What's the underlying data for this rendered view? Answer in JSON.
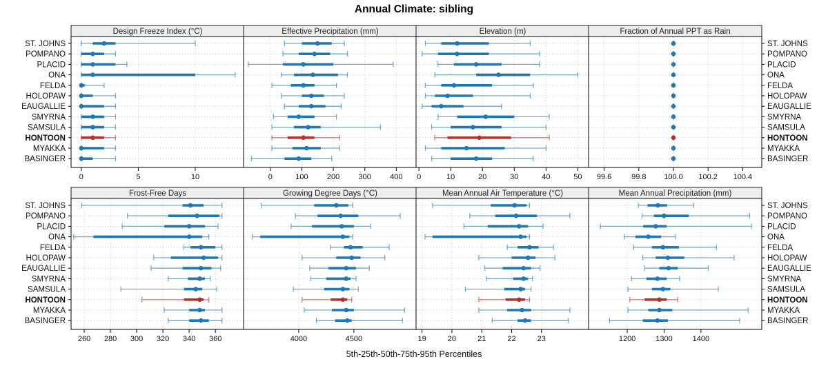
{
  "title": "Annual Climate: sibling",
  "caption": "5th-25th-50th-75th-95th Percentiles",
  "stations": [
    "ST. JOHNS",
    "POMPANO",
    "PLACID",
    "ONA",
    "FELDA",
    "HOLOPAW",
    "EAUGALLIE",
    "SMYRNA",
    "SAMSULA",
    "HONTOON",
    "MYAKKA",
    "BASINGER"
  ],
  "highlight_station": "HONTOON",
  "percentiles": [
    5,
    25,
    50,
    75,
    95
  ],
  "colors": {
    "series": "#1f77b4",
    "highlight": "#b5312c",
    "grid": "#c4c4c4",
    "strip_bg": "#ededed",
    "border": "#000000",
    "text": "#111111"
  },
  "chart_data": [
    {
      "type": "dotplot-interval",
      "id": "design-freeze-index",
      "row": 0,
      "col": 0,
      "title": "Design Freeze Index (°C)",
      "xlim": [
        -0.9,
        14.3
      ],
      "ticks": [
        0,
        5,
        10
      ],
      "values": [
        [
          0,
          1,
          2,
          3,
          10
        ],
        [
          0,
          0,
          1,
          2,
          3
        ],
        [
          0,
          0,
          1,
          3,
          4
        ],
        [
          0,
          0,
          1,
          10,
          13.5
        ],
        [
          0,
          0,
          0,
          0.3,
          2
        ],
        [
          0,
          0,
          0,
          1,
          3
        ],
        [
          0,
          0,
          0,
          2,
          3
        ],
        [
          0,
          0,
          1,
          2,
          3
        ],
        [
          0,
          0,
          1,
          2,
          3
        ],
        [
          0,
          0,
          1,
          2,
          3
        ],
        [
          0,
          0,
          0,
          2,
          3
        ],
        [
          0,
          0,
          0,
          1,
          3
        ]
      ]
    },
    {
      "type": "dotplot-interval",
      "id": "effective-precipitation",
      "row": 0,
      "col": 1,
      "title": "Effective Precipitation (mm)",
      "xlim": [
        -85,
        465
      ],
      "ticks": [
        0,
        100,
        200,
        300,
        400
      ],
      "values": [
        [
          45,
          100,
          150,
          195,
          235
        ],
        [
          40,
          90,
          140,
          190,
          245
        ],
        [
          -70,
          40,
          105,
          200,
          390
        ],
        [
          35,
          75,
          135,
          215,
          245
        ],
        [
          5,
          65,
          105,
          140,
          210
        ],
        [
          35,
          100,
          130,
          170,
          235
        ],
        [
          45,
          90,
          130,
          175,
          225
        ],
        [
          10,
          55,
          90,
          140,
          210
        ],
        [
          5,
          75,
          120,
          160,
          350
        ],
        [
          5,
          55,
          105,
          140,
          220
        ],
        [
          5,
          70,
          115,
          160,
          220
        ],
        [
          -60,
          45,
          90,
          130,
          195
        ]
      ]
    },
    {
      "type": "dotplot-interval",
      "id": "elevation",
      "row": 0,
      "col": 2,
      "title": "Elevation (m)",
      "xlim": [
        -0.9,
        53.6
      ],
      "ticks": [
        0,
        10,
        20,
        30,
        40,
        50
      ],
      "values": [
        [
          2,
          7,
          12,
          22,
          35
        ],
        [
          1,
          6,
          12,
          22,
          38
        ],
        [
          6,
          11,
          18,
          26,
          38
        ],
        [
          5,
          18,
          25,
          35,
          50
        ],
        [
          2,
          7,
          11,
          23,
          36
        ],
        [
          2,
          5,
          9,
          17,
          35
        ],
        [
          1,
          4,
          7,
          14,
          26
        ],
        [
          6,
          12,
          21,
          30,
          41
        ],
        [
          4,
          10,
          17,
          26,
          40
        ],
        [
          5,
          9,
          19,
          29,
          41
        ],
        [
          2,
          7,
          15,
          27,
          40
        ],
        [
          4,
          10,
          18,
          23,
          36
        ]
      ]
    },
    {
      "type": "dotplot-interval",
      "id": "fraction-annual-ppt-as-rain",
      "row": 0,
      "col": 3,
      "title": "Fraction of Annual PPT as Rain",
      "xlim": [
        99.51,
        100.51
      ],
      "ticks": [
        99.6,
        99.8,
        100.0,
        100.2,
        100.4
      ],
      "tick_labels": [
        "99.6",
        "99.8",
        "100.0",
        "100.2",
        "100.4"
      ],
      "values": [
        [
          100,
          100,
          100,
          100,
          100
        ],
        [
          100,
          100,
          100,
          100,
          100
        ],
        [
          100,
          100,
          100,
          100,
          100
        ],
        [
          100,
          100,
          100,
          100,
          100
        ],
        [
          100,
          100,
          100,
          100,
          100
        ],
        [
          100,
          100,
          100,
          100,
          100
        ],
        [
          100,
          100,
          100,
          100,
          100
        ],
        [
          100,
          100,
          100,
          100,
          100
        ],
        [
          100,
          100,
          100,
          100,
          100
        ],
        [
          100,
          100,
          100,
          100,
          100
        ],
        [
          100,
          100,
          100,
          100,
          100
        ],
        [
          100,
          100,
          100,
          100,
          100
        ]
      ]
    },
    {
      "type": "dotplot-interval",
      "id": "frost-free-days",
      "row": 1,
      "col": 0,
      "title": "Frost-Free Days",
      "xlim": [
        250,
        382
      ],
      "ticks": [
        260,
        280,
        300,
        320,
        340,
        360
      ],
      "values": [
        [
          258,
          335,
          341,
          351,
          365
        ],
        [
          293,
          324,
          346,
          363,
          365
        ],
        [
          289,
          321,
          340,
          352,
          362
        ],
        [
          252,
          267,
          340,
          350,
          355
        ],
        [
          336,
          341,
          349,
          360,
          365
        ],
        [
          313,
          326,
          351,
          362,
          365
        ],
        [
          311,
          335,
          349,
          357,
          364
        ],
        [
          324,
          339,
          348,
          352,
          356
        ],
        [
          288,
          336,
          345,
          350,
          361
        ],
        [
          304,
          336,
          348,
          351,
          355
        ],
        [
          321,
          340,
          348,
          352,
          365
        ],
        [
          324,
          340,
          349,
          355,
          365
        ]
      ]
    },
    {
      "type": "dotplot-interval",
      "id": "growing-degree-days",
      "row": 1,
      "col": 1,
      "title": "Growing Degree Days (°C)",
      "xlim": [
        3500,
        5070
      ],
      "ticks": [
        4000,
        4500
      ],
      "values": [
        [
          3660,
          4140,
          4340,
          4450,
          4490
        ],
        [
          3970,
          4170,
          4380,
          4540,
          4920
        ],
        [
          3930,
          4120,
          4390,
          4500,
          4650
        ],
        [
          3580,
          3650,
          4400,
          4460,
          4490
        ],
        [
          4290,
          4410,
          4470,
          4580,
          4820
        ],
        [
          4030,
          4340,
          4480,
          4560,
          4780
        ],
        [
          4100,
          4270,
          4430,
          4520,
          4640
        ],
        [
          4110,
          4250,
          4430,
          4470,
          4520
        ],
        [
          3950,
          4230,
          4400,
          4460,
          4540
        ],
        [
          4030,
          4290,
          4400,
          4440,
          4480
        ],
        [
          4050,
          4300,
          4430,
          4500,
          4960
        ],
        [
          4160,
          4330,
          4440,
          4480,
          4940
        ]
      ]
    },
    {
      "type": "dotplot-interval",
      "id": "mean-annual-air-temperature",
      "row": 1,
      "col": 2,
      "title": "Mean Annual Air Temperature (°C)",
      "xlim": [
        18.8,
        24.6
      ],
      "ticks": [
        19,
        20,
        21,
        22,
        23
      ],
      "values": [
        [
          19.35,
          21.3,
          22.1,
          22.5,
          22.6
        ],
        [
          20.6,
          21.45,
          22.15,
          22.85,
          23.95
        ],
        [
          20.4,
          21.2,
          22.25,
          22.55,
          23.05
        ],
        [
          19.1,
          19.35,
          22.3,
          22.5,
          22.6
        ],
        [
          21.85,
          22.2,
          22.6,
          22.9,
          23.4
        ],
        [
          20.9,
          22.0,
          22.55,
          22.8,
          23.45
        ],
        [
          21.1,
          21.7,
          22.4,
          22.65,
          22.95
        ],
        [
          21.15,
          22.05,
          22.4,
          22.55,
          22.7
        ],
        [
          20.45,
          21.75,
          22.3,
          22.45,
          22.65
        ],
        [
          20.9,
          21.8,
          22.25,
          22.45,
          22.6
        ],
        [
          20.9,
          21.85,
          22.35,
          22.65,
          23.95
        ],
        [
          21.35,
          22.2,
          22.45,
          22.65,
          23.9
        ]
      ]
    },
    {
      "type": "dotplot-interval",
      "id": "mean-annual-precipitation",
      "row": 1,
      "col": 3,
      "title": "Mean Annual Precipitation (mm)",
      "xlim": [
        1095,
        1565
      ],
      "ticks": [
        1200,
        1300,
        1400
      ],
      "values": [
        [
          1230,
          1255,
          1283,
          1308,
          1380
        ],
        [
          1240,
          1272,
          1300,
          1367,
          1532
        ],
        [
          1127,
          1243,
          1277,
          1307,
          1537
        ],
        [
          1192,
          1222,
          1257,
          1292,
          1330
        ],
        [
          1217,
          1267,
          1297,
          1340,
          1442
        ],
        [
          1242,
          1277,
          1310,
          1355,
          1490
        ],
        [
          1247,
          1287,
          1312,
          1337,
          1420
        ],
        [
          1212,
          1252,
          1282,
          1307,
          1342
        ],
        [
          1202,
          1267,
          1297,
          1317,
          1447
        ],
        [
          1207,
          1247,
          1287,
          1307,
          1337
        ],
        [
          1202,
          1257,
          1287,
          1322,
          1528
        ],
        [
          1152,
          1242,
          1282,
          1310,
          1505
        ]
      ]
    }
  ]
}
